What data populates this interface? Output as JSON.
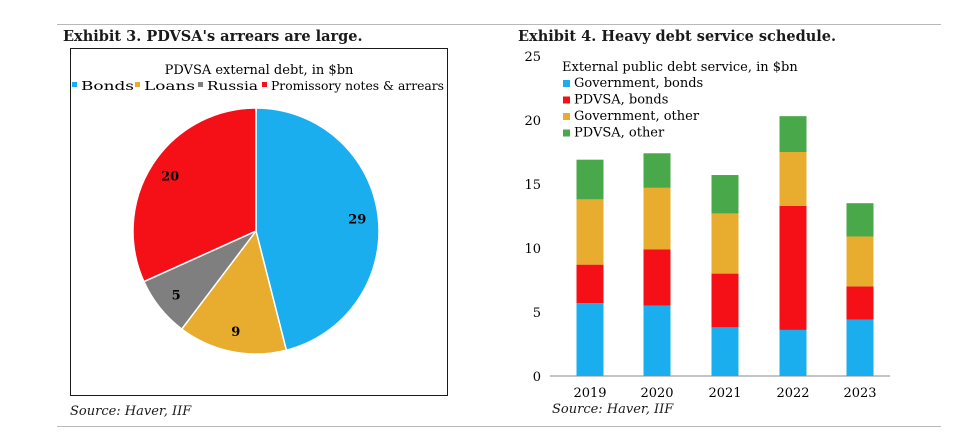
{
  "left_panel": {
    "title": "Exhibit 3. PDVSA's arrears are large.",
    "source": "Source: Haver, IIF"
  },
  "right_panel": {
    "title": "Exhibit 4. Heavy debt service schedule.",
    "source": "Source: Haver, IIF"
  },
  "chart_data": [
    {
      "type": "pie",
      "title": "PDVSA external debt, in $bn",
      "legend_position": "top",
      "slices": [
        {
          "label": "Bonds",
          "value": 29,
          "color": "#1aaeef"
        },
        {
          "label": "Loans",
          "value": 9,
          "color": "#e8ac2e"
        },
        {
          "label": "Russia",
          "value": 5,
          "color": "#7f7f7f"
        },
        {
          "label": "Promissory notes & arrears",
          "value": 20,
          "color": "#f50f16"
        }
      ]
    },
    {
      "type": "bar",
      "stacked": true,
      "title": "External public debt service, in $bn",
      "legend_position": "top-left",
      "categories": [
        "2019",
        "2020",
        "2021",
        "2022",
        "2023"
      ],
      "ylim": [
        0,
        25
      ],
      "yticks": [
        "0",
        "5",
        "10",
        "15",
        "20",
        "25"
      ],
      "series": [
        {
          "name": "Government, bonds",
          "color": "#1aaeef",
          "values": [
            5.7,
            5.5,
            3.8,
            3.6,
            4.4
          ]
        },
        {
          "name": "PDVSA, bonds",
          "color": "#f50f16",
          "values": [
            3.0,
            4.4,
            4.2,
            9.7,
            2.6
          ]
        },
        {
          "name": "Government, other",
          "color": "#e8ac2e",
          "values": [
            5.1,
            4.8,
            4.7,
            4.2,
            3.9
          ]
        },
        {
          "name": "PDVSA, other",
          "color": "#49a84a",
          "values": [
            3.1,
            2.7,
            3.0,
            2.8,
            2.6
          ]
        }
      ]
    }
  ]
}
